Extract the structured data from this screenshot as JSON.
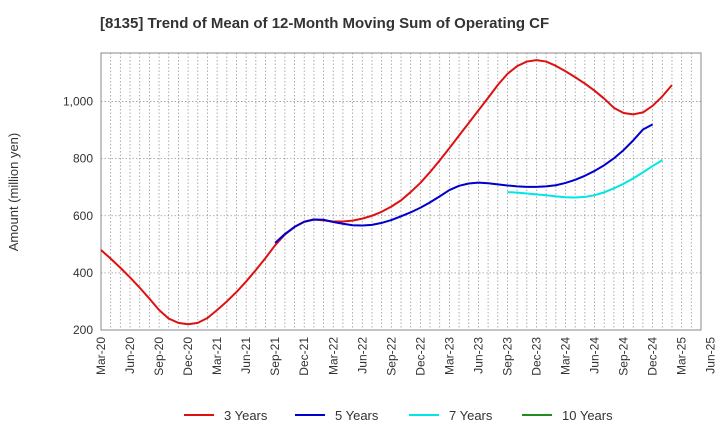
{
  "chart_data": {
    "type": "line",
    "title": "[8135]  Trend of Mean of 12-Month Moving Sum of Operating CF",
    "xlabel": "",
    "ylabel": "Amount (million yen)",
    "ylim": [
      200,
      1170
    ],
    "yticks": [
      200,
      400,
      600,
      800,
      1000
    ],
    "ytick_labels": [
      "200",
      "400",
      "600",
      "800",
      "1,000"
    ],
    "x_start": "Mar-20",
    "x_count": 62,
    "x_ticks": [
      "Mar-20",
      "Jun-20",
      "Sep-20",
      "Dec-20",
      "Mar-21",
      "Jun-21",
      "Sep-21",
      "Dec-21",
      "Mar-22",
      "Jun-22",
      "Sep-22",
      "Dec-22",
      "Mar-23",
      "Jun-23",
      "Sep-23",
      "Dec-23",
      "Mar-24",
      "Jun-24",
      "Sep-24",
      "Dec-24",
      "Mar-25",
      "Jun-25"
    ],
    "grid": true,
    "legend_position": "bottom",
    "series": [
      {
        "name": "3 Years",
        "color": "#dd1111",
        "start_index": 0,
        "values": [
          480,
          450,
          418,
          384,
          348,
          310,
          270,
          240,
          225,
          220,
          225,
          242,
          270,
          300,
          333,
          370,
          410,
          452,
          497,
          534,
          561,
          579,
          587,
          584,
          580,
          580,
          583,
          590,
          600,
          614,
          632,
          654,
          683,
          715,
          753,
          794,
          837,
          881,
          925,
          969,
          1013,
          1058,
          1097,
          1124,
          1140,
          1145,
          1140,
          1125,
          1106,
          1085,
          1063,
          1038,
          1010,
          978,
          960,
          955,
          962,
          985,
          1018,
          1058
        ]
      },
      {
        "name": "5 Years",
        "color": "#0000cc",
        "start_index": 18,
        "values": [
          505,
          536,
          561,
          579,
          587,
          586,
          578,
          572,
          567,
          566,
          568,
          575,
          585,
          598,
          612,
          628,
          647,
          668,
          690,
          705,
          713,
          716,
          714,
          710,
          706,
          703,
          701,
          701,
          703,
          707,
          715,
          726,
          740,
          757,
          777,
          801,
          830,
          864,
          902,
          920
        ]
      },
      {
        "name": "7 Years",
        "color": "#00e5e5",
        "start_index": 42,
        "values": [
          683,
          681,
          678,
          675,
          672,
          668,
          665,
          664,
          666,
          672,
          682,
          696,
          712,
          731,
          752,
          774,
          795
        ]
      },
      {
        "name": "10 Years",
        "color": "#228b22",
        "start_index": 0,
        "values": []
      }
    ]
  }
}
